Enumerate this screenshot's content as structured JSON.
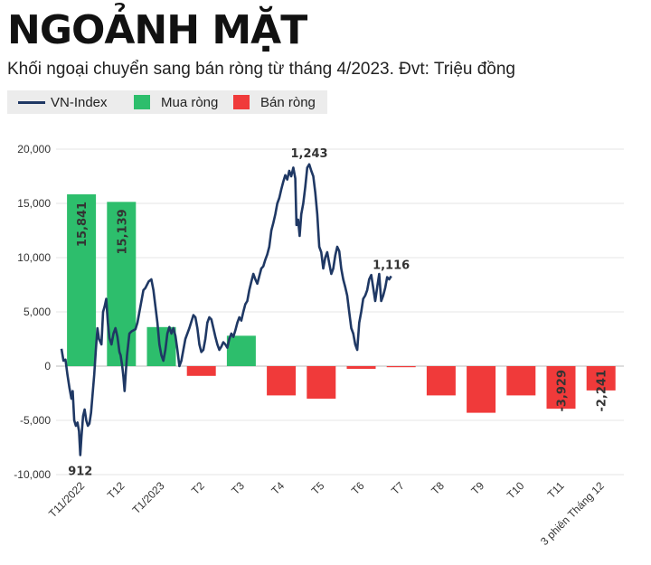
{
  "header": {
    "title": "NGOẢNH MẶT",
    "subtitle": "Khối ngoại chuyển sang bán ròng từ tháng 4/2023. Đvt: Triệu đồng"
  },
  "legend": [
    {
      "label": "VN-Index",
      "kind": "line",
      "color": "#1f3864"
    },
    {
      "label": "Mua ròng",
      "kind": "box",
      "color": "#2dbe6c"
    },
    {
      "label": "Bán ròng",
      "kind": "box",
      "color": "#f03a3a"
    }
  ],
  "chart_data": {
    "type": "bar",
    "categories": [
      "T11/2022",
      "T12",
      "T1/2023",
      "T2",
      "T3",
      "T4",
      "T5",
      "T6",
      "T7",
      "T8",
      "T9",
      "T10",
      "T11",
      "3 phiên Tháng 12"
    ],
    "series": [
      {
        "name": "Mua ròng",
        "color": "#2dbe6c",
        "values": [
          15841,
          15139,
          3600,
          null,
          2800,
          null,
          null,
          null,
          null,
          null,
          null,
          null,
          null,
          null
        ]
      },
      {
        "name": "Bán ròng",
        "color": "#f03a3a",
        "values": [
          null,
          null,
          null,
          -900,
          null,
          -2700,
          -3000,
          -250,
          -100,
          -2700,
          -4300,
          -2700,
          -3929,
          -2241
        ]
      }
    ],
    "bar_labels": [
      {
        "index": 0,
        "text": "15,841"
      },
      {
        "index": 1,
        "text": "15,139"
      },
      {
        "index": 12,
        "text": "-3,929"
      },
      {
        "index": 13,
        "text": "-2,241"
      }
    ],
    "line": {
      "name": "VN-Index",
      "color": "#1f3864",
      "points": [
        [
          0.0,
          1600
        ],
        [
          0.05,
          500
        ],
        [
          0.1,
          600
        ],
        [
          0.15,
          -800
        ],
        [
          0.2,
          -2000
        ],
        [
          0.25,
          -3000
        ],
        [
          0.28,
          -2300
        ],
        [
          0.32,
          -5000
        ],
        [
          0.36,
          -5500
        ],
        [
          0.4,
          -5200
        ],
        [
          0.44,
          -6000
        ],
        [
          0.47,
          -8200
        ],
        [
          0.5,
          -6500
        ],
        [
          0.54,
          -4600
        ],
        [
          0.58,
          -4000
        ],
        [
          0.62,
          -5000
        ],
        [
          0.66,
          -5500
        ],
        [
          0.7,
          -5300
        ],
        [
          0.74,
          -4300
        ],
        [
          0.78,
          -2500
        ],
        [
          0.82,
          -800
        ],
        [
          0.86,
          1500
        ],
        [
          0.9,
          3500
        ],
        [
          0.94,
          2500
        ],
        [
          1.0,
          2000
        ],
        [
          1.04,
          5000
        ],
        [
          1.08,
          5500
        ],
        [
          1.12,
          6200
        ],
        [
          1.16,
          4000
        ],
        [
          1.2,
          2600
        ],
        [
          1.25,
          2000
        ],
        [
          1.3,
          3000
        ],
        [
          1.35,
          3500
        ],
        [
          1.4,
          2700
        ],
        [
          1.45,
          1300
        ],
        [
          1.48,
          1000
        ],
        [
          1.52,
          0
        ],
        [
          1.55,
          -1000
        ],
        [
          1.58,
          -2300
        ],
        [
          1.61,
          -500
        ],
        [
          1.64,
          1000
        ],
        [
          1.67,
          2000
        ],
        [
          1.7,
          3000
        ],
        [
          1.75,
          3200
        ],
        [
          1.8,
          3300
        ],
        [
          1.85,
          3400
        ],
        [
          1.9,
          4000
        ],
        [
          1.95,
          5000
        ],
        [
          2.0,
          6000
        ],
        [
          2.05,
          7000
        ],
        [
          2.1,
          7200
        ],
        [
          2.18,
          7800
        ],
        [
          2.25,
          8000
        ],
        [
          2.3,
          7000
        ],
        [
          2.35,
          5500
        ],
        [
          2.4,
          4000
        ],
        [
          2.45,
          2000
        ],
        [
          2.5,
          1000
        ],
        [
          2.55,
          500
        ],
        [
          2.6,
          1500
        ],
        [
          2.65,
          3000
        ],
        [
          2.7,
          3600
        ],
        [
          2.75,
          3000
        ],
        [
          2.8,
          3500
        ],
        [
          2.85,
          2800
        ],
        [
          2.9,
          1500
        ],
        [
          2.95,
          0
        ],
        [
          3.0,
          500
        ],
        [
          3.05,
          1500
        ],
        [
          3.1,
          2500
        ],
        [
          3.2,
          3500
        ],
        [
          3.3,
          4700
        ],
        [
          3.35,
          4500
        ],
        [
          3.4,
          3500
        ],
        [
          3.45,
          2000
        ],
        [
          3.5,
          1300
        ],
        [
          3.55,
          1500
        ],
        [
          3.6,
          2500
        ],
        [
          3.65,
          4000
        ],
        [
          3.7,
          4500
        ],
        [
          3.75,
          4300
        ],
        [
          3.8,
          3500
        ],
        [
          3.85,
          2700
        ],
        [
          3.9,
          2000
        ],
        [
          3.95,
          1500
        ],
        [
          4.0,
          1800
        ],
        [
          4.05,
          2200
        ],
        [
          4.1,
          2000
        ],
        [
          4.15,
          1700
        ],
        [
          4.2,
          2500
        ],
        [
          4.25,
          3000
        ],
        [
          4.3,
          2700
        ],
        [
          4.35,
          3300
        ],
        [
          4.4,
          4000
        ],
        [
          4.45,
          4500
        ],
        [
          4.5,
          4200
        ],
        [
          4.55,
          5000
        ],
        [
          4.6,
          5700
        ],
        [
          4.65,
          6000
        ],
        [
          4.7,
          7000
        ],
        [
          4.75,
          7800
        ],
        [
          4.8,
          8500
        ],
        [
          4.85,
          8000
        ],
        [
          4.9,
          7600
        ],
        [
          4.95,
          8300
        ],
        [
          5.0,
          9000
        ],
        [
          5.05,
          9200
        ],
        [
          5.1,
          9800
        ],
        [
          5.15,
          10300
        ],
        [
          5.2,
          11000
        ],
        [
          5.25,
          12500
        ],
        [
          5.3,
          13200
        ],
        [
          5.35,
          14000
        ],
        [
          5.4,
          15000
        ],
        [
          5.45,
          15500
        ],
        [
          5.5,
          16300
        ],
        [
          5.55,
          17000
        ],
        [
          5.6,
          17600
        ],
        [
          5.65,
          17200
        ],
        [
          5.7,
          18000
        ],
        [
          5.75,
          17500
        ],
        [
          5.8,
          18300
        ],
        [
          5.85,
          17300
        ],
        [
          5.88,
          13000
        ],
        [
          5.92,
          13500
        ],
        [
          5.96,
          12000
        ],
        [
          6.0,
          14000
        ],
        [
          6.05,
          15000
        ],
        [
          6.1,
          16500
        ],
        [
          6.15,
          18300
        ],
        [
          6.2,
          18600
        ],
        [
          6.25,
          18000
        ],
        [
          6.3,
          17500
        ],
        [
          6.35,
          16000
        ],
        [
          6.4,
          14000
        ],
        [
          6.45,
          11000
        ],
        [
          6.5,
          10500
        ],
        [
          6.55,
          9000
        ],
        [
          6.6,
          10000
        ],
        [
          6.65,
          10500
        ],
        [
          6.7,
          9500
        ],
        [
          6.75,
          8500
        ],
        [
          6.8,
          9000
        ],
        [
          6.85,
          10200
        ],
        [
          6.9,
          11000
        ],
        [
          6.95,
          10600
        ],
        [
          7.0,
          9000
        ],
        [
          7.05,
          8000
        ],
        [
          7.1,
          7300
        ],
        [
          7.15,
          6500
        ],
        [
          7.2,
          5000
        ],
        [
          7.25,
          3500
        ],
        [
          7.3,
          3000
        ],
        [
          7.35,
          2000
        ],
        [
          7.4,
          1500
        ],
        [
          7.45,
          4000
        ],
        [
          7.5,
          5000
        ],
        [
          7.55,
          6200
        ],
        [
          7.6,
          6500
        ],
        [
          7.65,
          7000
        ],
        [
          7.7,
          8000
        ],
        [
          7.75,
          8400
        ],
        [
          7.8,
          7200
        ],
        [
          7.85,
          6000
        ],
        [
          7.9,
          7300
        ],
        [
          7.95,
          8500
        ],
        [
          8.0,
          6000
        ],
        [
          8.05,
          6500
        ],
        [
          8.1,
          7200
        ],
        [
          8.15,
          8200
        ],
        [
          8.2,
          8000
        ],
        [
          8.25,
          8300
        ]
      ],
      "labels": [
        {
          "x": 0.47,
          "y": -8200,
          "text": "912"
        },
        {
          "x": 6.2,
          "y": 18600,
          "text": "1,243"
        },
        {
          "x": 8.25,
          "y": 8300,
          "text": "1,116"
        }
      ]
    },
    "ylim": [
      -10000,
      20000
    ],
    "yticks": [
      20000,
      15000,
      10000,
      5000,
      0,
      -5000,
      -10000
    ],
    "ytick_labels": [
      "20,000",
      "15,000",
      "10,000",
      "5,000",
      "0",
      "-5,000",
      "-10,000"
    ],
    "xlabel": "",
    "ylabel": "",
    "grid": true,
    "legend_position": "top-left"
  }
}
